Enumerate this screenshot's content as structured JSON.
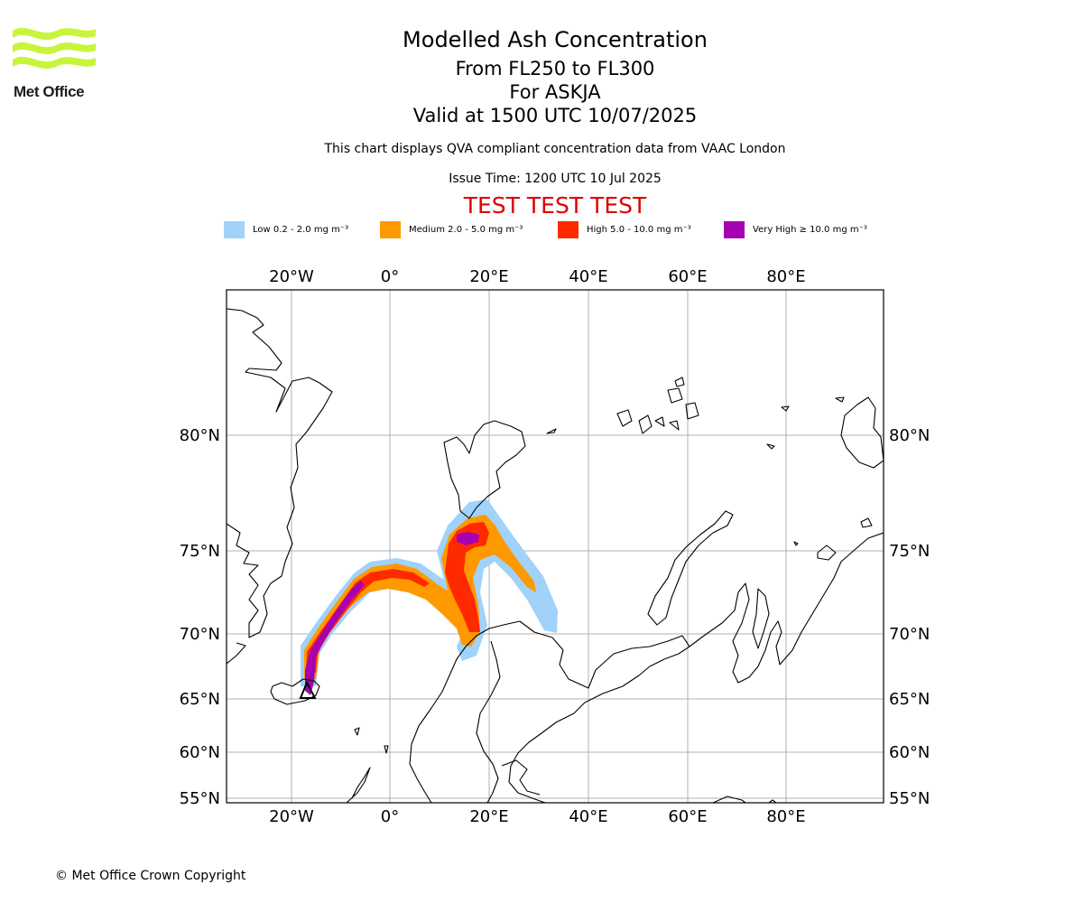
{
  "header": {
    "title": "Modelled Ash Concentration",
    "flight_levels": "From FL250 to FL300",
    "volcano": "For ASKJA",
    "valid": "Valid at 1500 UTC 10/07/2025",
    "note": "This chart displays QVA compliant concentration data from VAAC London",
    "issue": "Issue Time: 1200 UTC 10 Jul 2025",
    "banner": "TEST TEST TEST"
  },
  "logo": {
    "text": "Met Office",
    "color": "#c8f53c"
  },
  "legend": {
    "items": [
      {
        "label": "Low 0.2 - 2.0 mg m⁻³",
        "color": "#a0d2fa"
      },
      {
        "label": "Medium 2.0 - 5.0 mg m⁻³",
        "color": "#ff9900"
      },
      {
        "label": "High 5.0 - 10.0 mg m⁻³",
        "color": "#ff2a00"
      },
      {
        "label": "Very High  ≥  10.0 mg m⁻³",
        "color": "#a600b0"
      }
    ]
  },
  "map": {
    "lon_ticks": [
      "20°W",
      "0°",
      "20°E",
      "40°E",
      "60°E",
      "80°E"
    ],
    "lat_ticks": [
      "80°N",
      "75°N",
      "70°N",
      "65°N",
      "60°N",
      "55°N"
    ],
    "lon_range": [
      -33,
      100
    ],
    "lat_range": [
      54.5,
      86
    ],
    "grid": true,
    "source_marker": "triangle-icon"
  },
  "footer": {
    "copyright": "© Met Office Crown Copyright"
  }
}
